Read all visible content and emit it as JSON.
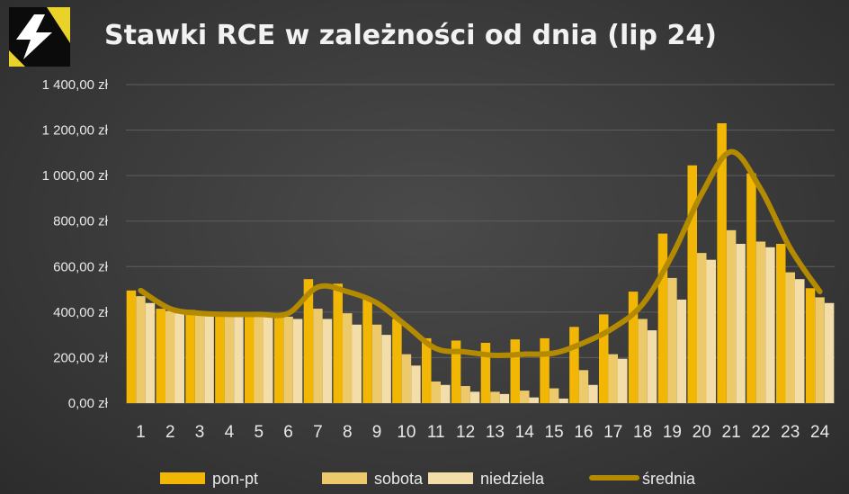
{
  "chart_data": {
    "type": "bar",
    "title": "Stawki RCE w zależności od dnia (lip 24)",
    "xlabel": "",
    "ylabel": "",
    "ylim": [
      0,
      1400
    ],
    "y_ticks": [
      0,
      200,
      400,
      600,
      800,
      1000,
      1200,
      1400
    ],
    "y_tick_labels": [
      "0,00 zł",
      "200,00 zł",
      "400,00 zł",
      "600,00 zł",
      "800,00 zł",
      "1 000,00 zł",
      "1 200,00 zł",
      "1 400,00 zł"
    ],
    "categories": [
      "1",
      "2",
      "3",
      "4",
      "5",
      "6",
      "7",
      "8",
      "9",
      "10",
      "11",
      "12",
      "13",
      "14",
      "15",
      "16",
      "17",
      "18",
      "19",
      "20",
      "21",
      "22",
      "23",
      "24"
    ],
    "grid": true,
    "legend_position": "bottom",
    "series": [
      {
        "name": "pon-pt",
        "type": "bar",
        "color": "#f2b705",
        "values": [
          495,
          415,
          410,
          395,
          385,
          385,
          545,
          525,
          465,
          370,
          285,
          275,
          265,
          280,
          285,
          335,
          390,
          490,
          745,
          1045,
          1230,
          1010,
          700,
          505
        ]
      },
      {
        "name": "sobota",
        "type": "bar",
        "color": "#ecc96a",
        "values": [
          470,
          405,
          400,
          385,
          385,
          380,
          415,
          395,
          345,
          215,
          95,
          75,
          50,
          55,
          65,
          145,
          215,
          370,
          550,
          660,
          760,
          710,
          575,
          465
        ]
      },
      {
        "name": "niedziela",
        "type": "bar",
        "color": "#f3deaa",
        "values": [
          440,
          395,
          390,
          380,
          380,
          370,
          370,
          345,
          300,
          165,
          80,
          50,
          40,
          25,
          20,
          80,
          195,
          320,
          455,
          630,
          700,
          685,
          545,
          440
        ]
      },
      {
        "name": "średnia",
        "type": "line",
        "color": "#b48a00",
        "values": [
          495,
          415,
          395,
          390,
          390,
          395,
          510,
          490,
          440,
          340,
          240,
          225,
          210,
          215,
          220,
          265,
          330,
          435,
          650,
          920,
          1105,
          940,
          680,
          490
        ]
      }
    ]
  },
  "colors": {
    "background": "#3a3a3a",
    "gridline": "#5e5e5e",
    "axis_text": "#e8e8e8",
    "title_text": "#f2f2f2",
    "logo_bg": "#0b0b0b",
    "logo_accent": "#e9d32a"
  },
  "logo": {
    "icon": "lightning-logo-icon"
  }
}
